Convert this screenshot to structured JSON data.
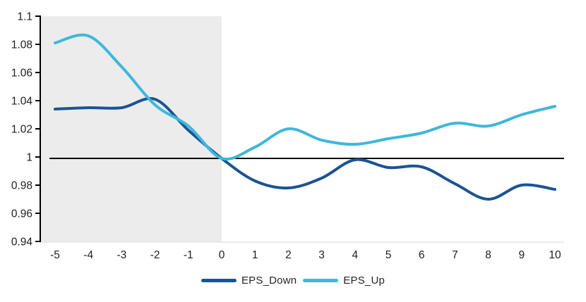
{
  "chart_data": {
    "type": "line",
    "smooth": true,
    "x": [
      -5,
      -4,
      -3,
      -2,
      -1,
      0,
      1,
      2,
      3,
      4,
      5,
      6,
      7,
      8,
      9,
      10
    ],
    "xtick_labels": [
      "-5",
      "-4",
      "-3",
      "-2",
      "-1",
      "0",
      "1",
      "2",
      "3",
      "4",
      "5",
      "6",
      "7",
      "8",
      "9",
      "10"
    ],
    "series": [
      {
        "name": "EPS_Down",
        "color": "#1A5493",
        "values": [
          1.034,
          1.035,
          1.035,
          1.041,
          1.019,
          0.999,
          0.983,
          0.978,
          0.985,
          0.998,
          0.9925,
          0.993,
          0.981,
          0.97,
          0.98,
          0.977
        ]
      },
      {
        "name": "EPS_Up",
        "color": "#3EB7DC",
        "values": [
          1.081,
          1.086,
          1.064,
          1.037,
          1.022,
          0.999,
          1.007,
          1.02,
          1.012,
          1.009,
          1.013,
          1.017,
          1.024,
          1.022,
          1.03,
          1.036
        ]
      }
    ],
    "ylim": [
      0.94,
      1.1
    ],
    "yticks": [
      {
        "value": 1.1,
        "label": "1.1"
      },
      {
        "value": 1.08,
        "label": "1.08"
      },
      {
        "value": 1.06,
        "label": "1.06"
      },
      {
        "value": 1.04,
        "label": "1.04"
      },
      {
        "value": 1.02,
        "label": "1.02"
      },
      {
        "value": 1.0,
        "label": "1"
      },
      {
        "value": 0.98,
        "label": "0.98"
      },
      {
        "value": 0.96,
        "label": "0.96"
      },
      {
        "value": 0.94,
        "label": "0.94"
      }
    ],
    "reference_line": {
      "value": 0.999,
      "color": "#000000"
    },
    "shaded_region": {
      "x_start": -5,
      "x_end": 0,
      "color": "#ECECEC"
    },
    "legend_position": "bottom",
    "axis_color": "#000000",
    "tick_label_color": "#202020",
    "baseline_color": "#D5D5D5"
  }
}
